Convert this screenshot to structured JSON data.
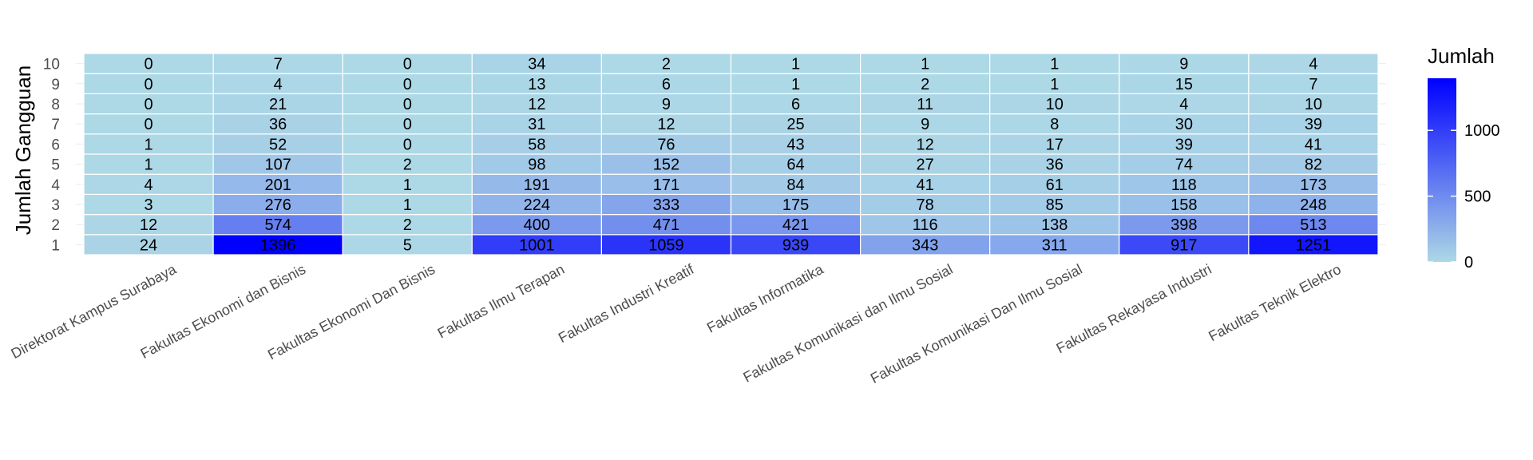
{
  "chart_data": {
    "type": "heatmap",
    "title": "",
    "xlabel": "",
    "ylabel": "Jumlah Gangguan",
    "x_categories": [
      "Direktorat Kampus Surabaya",
      "Fakultas Ekonomi dan Bisnis",
      "Fakultas Ekonomi Dan Bisnis",
      "Fakultas Ilmu Terapan",
      "Fakultas Industri Kreatif",
      "Fakultas Informatika",
      "Fakultas Komunikasi dan Ilmu Sosial",
      "Fakultas Komunikasi Dan Ilmu Sosial",
      "Fakultas Rekayasa Industri",
      "Fakultas Teknik Elektro"
    ],
    "y_categories": [
      "1",
      "2",
      "3",
      "4",
      "5",
      "6",
      "7",
      "8",
      "9",
      "10"
    ],
    "values": [
      [
        24,
        12,
        3,
        4,
        1,
        1,
        0,
        0,
        0,
        0
      ],
      [
        1396,
        574,
        276,
        201,
        107,
        52,
        36,
        21,
        4,
        7
      ],
      [
        5,
        2,
        1,
        1,
        2,
        0,
        0,
        0,
        0,
        0
      ],
      [
        1001,
        400,
        224,
        191,
        98,
        58,
        31,
        12,
        13,
        34
      ],
      [
        1059,
        471,
        333,
        171,
        152,
        76,
        12,
        9,
        6,
        2
      ],
      [
        939,
        421,
        175,
        84,
        64,
        43,
        25,
        6,
        1,
        1
      ],
      [
        343,
        116,
        78,
        41,
        27,
        12,
        9,
        11,
        2,
        1
      ],
      [
        311,
        138,
        85,
        61,
        36,
        17,
        8,
        10,
        1,
        1
      ],
      [
        917,
        398,
        158,
        118,
        74,
        39,
        30,
        4,
        15,
        9
      ],
      [
        1251,
        513,
        248,
        173,
        82,
        41,
        39,
        10,
        7,
        4
      ]
    ],
    "legend": {
      "title": "Jumlah",
      "ticks": [
        0,
        500,
        1000
      ],
      "range": [
        0,
        1396
      ],
      "low_color": "#add8e6",
      "high_color": "#0000ff"
    },
    "grid": true,
    "legend_position": "right"
  }
}
